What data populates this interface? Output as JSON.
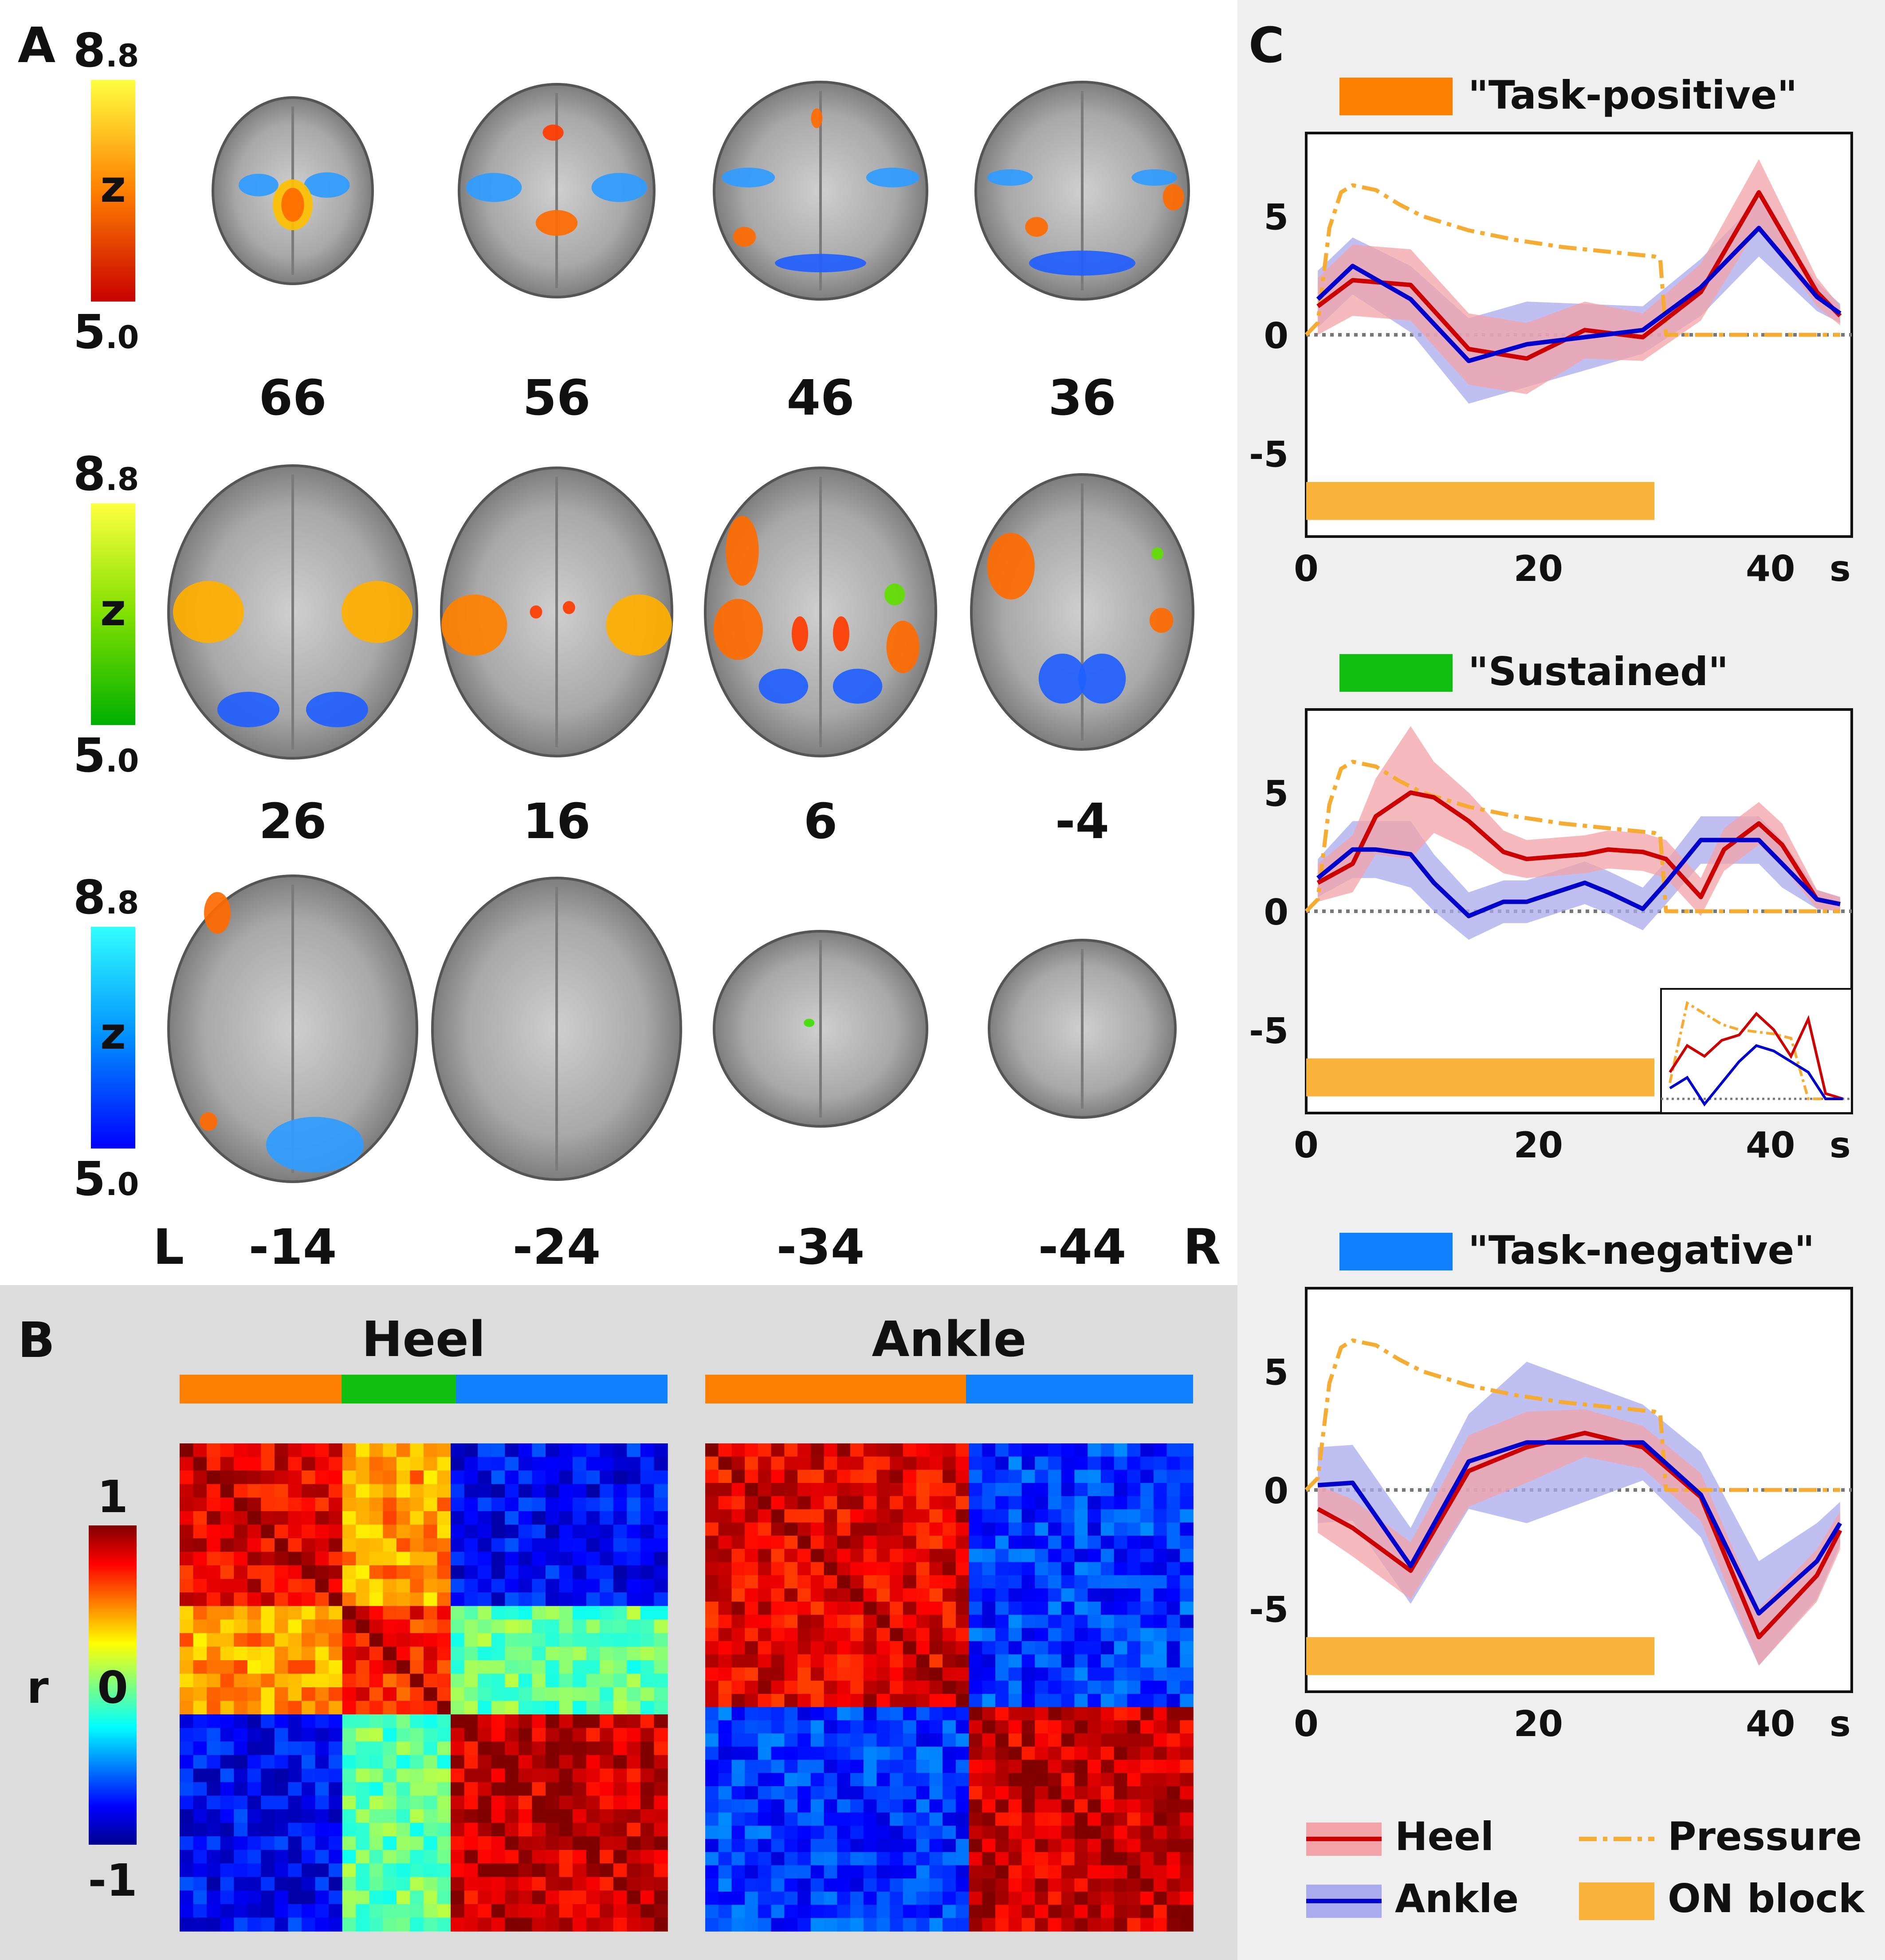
{
  "panel_letters": {
    "a": "A",
    "b": "B",
    "c": "C"
  },
  "panel_a": {
    "colorbars": [
      {
        "max_int": "8",
        "max_dec": ".8",
        "label": "z",
        "min_int": "5",
        "min_dec": ".0",
        "colors": [
          "#c80000",
          "#ff8000",
          "#ffff40"
        ]
      },
      {
        "max_int": "8",
        "max_dec": ".8",
        "label": "z",
        "min_int": "5",
        "min_dec": ".0",
        "colors": [
          "#00b000",
          "#80e000",
          "#ffff40"
        ]
      },
      {
        "max_int": "8",
        "max_dec": ".8",
        "label": "z",
        "min_int": "5",
        "min_dec": ".0",
        "colors": [
          "#0000ff",
          "#0090ff",
          "#30ffff"
        ]
      }
    ],
    "slice_labels": [
      "66",
      "56",
      "46",
      "36",
      "26",
      "16",
      "6",
      "-4",
      "-14",
      "-24",
      "-34",
      "-44"
    ],
    "orientation_left": "L",
    "orientation_right": "R"
  },
  "panel_b": {
    "titles": [
      "Heel",
      "Ankle"
    ],
    "colorbar_label": "r",
    "colorbar_ticks": [
      "1",
      "0",
      "-1"
    ],
    "network_colors": {
      "task_positive": "#ff8000",
      "sustained": "#10c010",
      "task_negative": "#1080ff"
    }
  },
  "panel_c": {
    "x_unit": "s",
    "x_ticks": [
      "0",
      "20",
      "40"
    ],
    "y_ticks": [
      "5",
      "0",
      "-5"
    ],
    "legend": {
      "heel": "Heel",
      "ankle": "Ankle",
      "pressure": "Pressure",
      "on_block": "ON block"
    },
    "colors": {
      "heel": "#cc0000",
      "ankle": "#0000cc",
      "pressure": "#f6ac32",
      "on_block": "#f9b23a",
      "heel_band": "#f3a3a8",
      "ankle_band": "#aaaaee"
    }
  },
  "chart_data": [
    {
      "type": "line",
      "title": "\"Task-positive\"",
      "title_color": "#ff8000",
      "xlabel": "s",
      "xlim": [
        0,
        47
      ],
      "ylim": [
        -8.5,
        8.5
      ],
      "x": [
        1,
        4,
        9,
        14,
        19,
        24,
        29,
        34,
        39,
        44,
        46
      ],
      "series": [
        {
          "name": "Heel",
          "values": [
            1.2,
            2.3,
            2.1,
            -0.6,
            -1.0,
            0.2,
            -0.1,
            1.8,
            6.0,
            1.8,
            0.8
          ],
          "band": [
            1.2,
            1.5,
            1.5,
            1.5,
            1.5,
            1.2,
            1.0,
            1.2,
            1.4,
            0.6,
            0.4
          ]
        },
        {
          "name": "Ankle",
          "values": [
            1.5,
            2.9,
            1.5,
            -1.1,
            -0.4,
            -0.1,
            0.2,
            2.0,
            4.5,
            1.6,
            0.9
          ],
          "band": [
            1.2,
            1.2,
            1.4,
            1.8,
            1.8,
            1.4,
            1.0,
            1.2,
            1.2,
            0.6,
            0.4
          ]
        },
        {
          "name": "Pressure",
          "x": [
            0,
            1,
            2,
            3,
            4,
            6,
            8,
            10,
            14,
            18,
            22,
            26,
            30,
            30.5,
            31,
            35,
            40,
            46
          ],
          "values": [
            0,
            0.5,
            4.5,
            6.0,
            6.3,
            6.1,
            5.5,
            5.0,
            4.4,
            4.0,
            3.7,
            3.5,
            3.3,
            3.2,
            0,
            0,
            0,
            0
          ]
        }
      ],
      "on_block": [
        0,
        30
      ]
    },
    {
      "type": "line",
      "title": "\"Sustained\"",
      "title_color": "#10c010",
      "xlabel": "s",
      "xlim": [
        0,
        47
      ],
      "ylim": [
        -8.5,
        8.5
      ],
      "x": [
        1,
        4,
        6,
        9,
        11,
        14,
        17,
        19,
        24,
        26,
        29,
        31,
        34,
        36,
        39,
        41,
        44,
        46
      ],
      "series": [
        {
          "name": "Heel",
          "values": [
            1.2,
            2.0,
            4.0,
            5.0,
            4.8,
            3.8,
            2.5,
            2.2,
            2.4,
            2.6,
            2.5,
            2.2,
            0.6,
            2.6,
            3.7,
            2.8,
            0.5,
            0.3
          ],
          "band": [
            0.8,
            1.2,
            1.6,
            2.8,
            1.5,
            1.2,
            0.9,
            0.8,
            0.8,
            0.8,
            0.8,
            0.8,
            0.8,
            0.9,
            0.9,
            0.9,
            0.4,
            0.3
          ]
        },
        {
          "name": "Ankle",
          "values": [
            1.4,
            2.6,
            2.6,
            2.4,
            1.2,
            -0.2,
            0.4,
            0.4,
            1.2,
            0.8,
            0.1,
            1.2,
            3.0,
            3.0,
            3.0,
            2.0,
            0.5,
            0.3
          ],
          "band": [
            0.8,
            1.2,
            1.2,
            1.4,
            1.2,
            1.0,
            0.9,
            0.9,
            0.9,
            0.9,
            0.9,
            0.9,
            1.0,
            1.0,
            1.0,
            1.0,
            0.4,
            0.3
          ]
        },
        {
          "name": "Pressure",
          "x": [
            0,
            1,
            2,
            3,
            4,
            6,
            8,
            10,
            14,
            18,
            22,
            26,
            30,
            30.5,
            31,
            35,
            40,
            46
          ],
          "values": [
            0,
            0.5,
            4.5,
            6.0,
            6.3,
            6.1,
            5.5,
            5.0,
            4.4,
            4.0,
            3.7,
            3.5,
            3.3,
            3.2,
            0,
            0,
            0,
            0
          ]
        }
      ],
      "on_block": [
        0,
        30
      ],
      "inset": {
        "heel": [
          0.3,
          0.55,
          0.45,
          0.6,
          0.65,
          0.85,
          0.7,
          0.45,
          0.8,
          0.1,
          0.05
        ],
        "ankle": [
          0.15,
          0.25,
          0.0,
          0.2,
          0.4,
          0.55,
          0.5,
          0.4,
          0.3,
          0.05,
          0.05
        ],
        "pressure": [
          0.2,
          0.95,
          0.85,
          0.75,
          0.7,
          0.68,
          0.66,
          0.62,
          0.05,
          0.05,
          0.05
        ]
      }
    },
    {
      "type": "line",
      "title": "\"Task-negative\"",
      "title_color": "#1080ff",
      "xlabel": "s",
      "xlim": [
        0,
        47
      ],
      "ylim": [
        -8.5,
        8.5
      ],
      "x": [
        1,
        4,
        9,
        14,
        19,
        24,
        29,
        34,
        39,
        44,
        46
      ],
      "series": [
        {
          "name": "Heel",
          "values": [
            -0.8,
            -1.6,
            -3.4,
            0.8,
            1.8,
            2.4,
            1.8,
            -0.3,
            -6.2,
            -3.6,
            -1.7
          ],
          "band": [
            1.0,
            1.2,
            1.2,
            1.5,
            1.5,
            1.0,
            0.9,
            1.0,
            1.2,
            1.1,
            0.8
          ]
        },
        {
          "name": "Ankle",
          "values": [
            0.2,
            0.3,
            -3.2,
            1.2,
            2.0,
            2.0,
            2.0,
            -0.2,
            -5.2,
            -3.0,
            -1.4
          ],
          "band": [
            1.6,
            1.6,
            1.6,
            2.0,
            3.4,
            2.5,
            1.6,
            1.8,
            2.2,
            1.6,
            0.9
          ]
        },
        {
          "name": "Pressure",
          "x": [
            0,
            1,
            2,
            3,
            4,
            6,
            8,
            10,
            14,
            18,
            22,
            26,
            30,
            30.5,
            31,
            35,
            40,
            46
          ],
          "values": [
            0,
            0.5,
            4.5,
            6.0,
            6.3,
            6.1,
            5.5,
            5.0,
            4.4,
            4.0,
            3.7,
            3.5,
            3.3,
            3.2,
            0,
            0,
            0,
            0
          ]
        }
      ],
      "on_block": [
        0,
        30
      ]
    }
  ]
}
